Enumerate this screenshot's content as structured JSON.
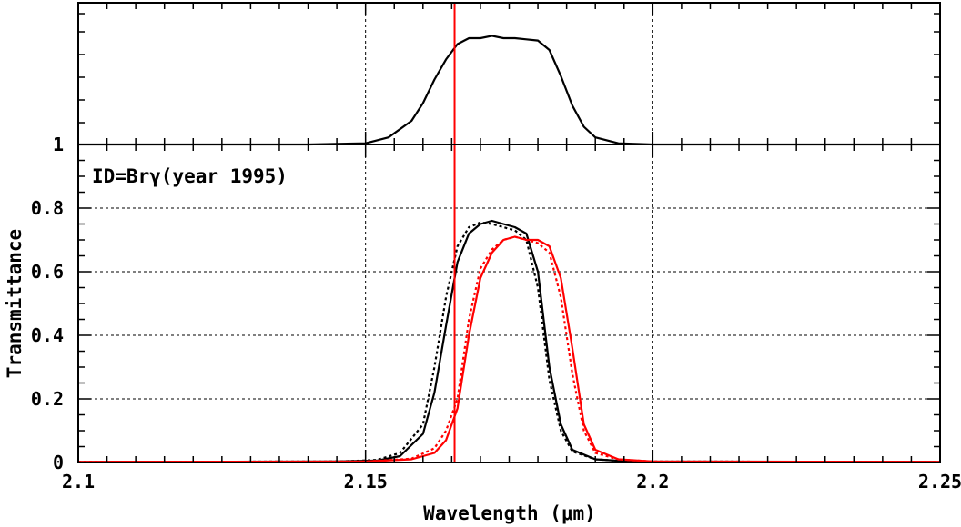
{
  "chart_data": {
    "type": "line",
    "xlabel": "Wavelength (μm)",
    "ylabel": "Transmittance",
    "xlim": [
      2.1,
      2.25
    ],
    "x_ticks": [
      2.1,
      2.15,
      2.2,
      2.25
    ],
    "x_tick_labels": [
      "2.1",
      "2.15",
      "2.2",
      "2.25"
    ],
    "grid": true,
    "lower_panel": {
      "ylim": [
        0,
        1
      ],
      "y_ticks": [
        0,
        0.2,
        0.4,
        0.6,
        0.8,
        1
      ],
      "y_tick_labels": [
        "0",
        "0.2",
        "0.4",
        "0.6",
        "0.8",
        "1"
      ],
      "annotation": "ID=Brγ(year 1995)",
      "vertical_line_x": 2.1655,
      "series": [
        {
          "color": "#000000",
          "style": "solid",
          "x": [
            2.1,
            2.145,
            2.152,
            2.156,
            2.16,
            2.162,
            2.164,
            2.166,
            2.168,
            2.17,
            2.172,
            2.174,
            2.176,
            2.178,
            2.18,
            2.182,
            2.184,
            2.186,
            2.19,
            2.196,
            2.25
          ],
          "y": [
            0.002,
            0.003,
            0.006,
            0.02,
            0.09,
            0.22,
            0.43,
            0.63,
            0.72,
            0.75,
            0.76,
            0.75,
            0.74,
            0.72,
            0.6,
            0.3,
            0.12,
            0.04,
            0.01,
            0.003,
            0.002
          ]
        },
        {
          "color": "#000000",
          "style": "dotted",
          "x": [
            2.1,
            2.145,
            2.152,
            2.156,
            2.16,
            2.162,
            2.164,
            2.166,
            2.168,
            2.17,
            2.172,
            2.174,
            2.176,
            2.178,
            2.18,
            2.182,
            2.184,
            2.186,
            2.19,
            2.196,
            2.25
          ],
          "y": [
            0.002,
            0.003,
            0.008,
            0.03,
            0.12,
            0.3,
            0.52,
            0.68,
            0.74,
            0.755,
            0.75,
            0.74,
            0.73,
            0.7,
            0.55,
            0.26,
            0.1,
            0.035,
            0.01,
            0.003,
            0.002
          ]
        },
        {
          "color": "#ff0000",
          "style": "solid",
          "x": [
            2.1,
            2.15,
            2.158,
            2.162,
            2.164,
            2.166,
            2.168,
            2.17,
            2.172,
            2.174,
            2.176,
            2.178,
            2.18,
            2.182,
            2.184,
            2.186,
            2.188,
            2.19,
            2.194,
            2.2,
            2.25
          ],
          "y": [
            0.002,
            0.003,
            0.01,
            0.03,
            0.07,
            0.17,
            0.4,
            0.58,
            0.66,
            0.7,
            0.71,
            0.7,
            0.7,
            0.68,
            0.58,
            0.36,
            0.12,
            0.04,
            0.01,
            0.003,
            0.002
          ]
        },
        {
          "color": "#ff0000",
          "style": "dotted",
          "x": [
            2.1,
            2.15,
            2.158,
            2.162,
            2.164,
            2.166,
            2.168,
            2.17,
            2.172,
            2.174,
            2.176,
            2.178,
            2.18,
            2.182,
            2.184,
            2.186,
            2.188,
            2.19,
            2.194,
            2.2,
            2.25
          ],
          "y": [
            0.002,
            0.003,
            0.012,
            0.045,
            0.1,
            0.2,
            0.45,
            0.61,
            0.67,
            0.7,
            0.71,
            0.7,
            0.69,
            0.66,
            0.52,
            0.28,
            0.1,
            0.03,
            0.01,
            0.003,
            0.002
          ]
        }
      ]
    },
    "upper_panel": {
      "y_tick_labels": [
        "1"
      ],
      "series": [
        {
          "color": "#000000",
          "style": "solid",
          "x": [
            2.1,
            2.14,
            2.15,
            2.154,
            2.158,
            2.16,
            2.162,
            2.164,
            2.166,
            2.168,
            2.17,
            2.172,
            2.174,
            2.176,
            2.178,
            2.18,
            2.182,
            2.184,
            2.186,
            2.188,
            2.19,
            2.194,
            2.2,
            2.25
          ],
          "y": [
            0.0,
            0.0,
            0.01,
            0.06,
            0.2,
            0.35,
            0.55,
            0.72,
            0.85,
            0.9,
            0.9,
            0.92,
            0.9,
            0.9,
            0.89,
            0.88,
            0.8,
            0.58,
            0.33,
            0.15,
            0.06,
            0.01,
            0.0,
            0.0
          ]
        }
      ]
    }
  }
}
